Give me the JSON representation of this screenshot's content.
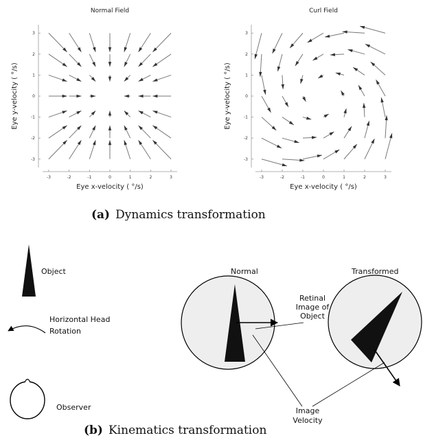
{
  "chart_data": [
    {
      "type": "quiver",
      "title": "Normal Field",
      "x_label": "Eye x-velocity ( °/s)",
      "y_label": "Eye y-velocity ( °/s)",
      "x": [
        -3,
        -2,
        -1,
        0,
        1,
        2,
        3
      ],
      "y": [
        3,
        2,
        1,
        0,
        -1,
        -2,
        -3
      ],
      "u": [
        [
          0.9,
          0.6,
          0.3,
          0,
          -0.3,
          -0.6,
          -0.9
        ],
        [
          0.9,
          0.6,
          0.3,
          0,
          -0.3,
          -0.6,
          -0.9
        ],
        [
          0.9,
          0.6,
          0.3,
          0,
          -0.3,
          -0.6,
          -0.9
        ],
        [
          0.9,
          0.6,
          0.3,
          0,
          -0.3,
          -0.6,
          -0.9
        ],
        [
          0.9,
          0.6,
          0.3,
          0,
          -0.3,
          -0.6,
          -0.9
        ],
        [
          0.9,
          0.6,
          0.3,
          0,
          -0.3,
          -0.6,
          -0.9
        ],
        [
          0.9,
          0.6,
          0.3,
          0,
          -0.3,
          -0.6,
          -0.9
        ]
      ],
      "v": [
        [
          -0.9,
          -0.9,
          -0.9,
          -0.9,
          -0.9,
          -0.9,
          -0.9
        ],
        [
          -0.6,
          -0.6,
          -0.6,
          -0.6,
          -0.6,
          -0.6,
          -0.6
        ],
        [
          -0.3,
          -0.3,
          -0.3,
          -0.3,
          -0.3,
          -0.3,
          -0.3
        ],
        [
          0,
          0,
          0,
          0,
          0,
          0,
          0
        ],
        [
          0.3,
          0.3,
          0.3,
          0.3,
          0.3,
          0.3,
          0.3
        ],
        [
          0.6,
          0.6,
          0.6,
          0.6,
          0.6,
          0.6,
          0.6
        ],
        [
          0.9,
          0.9,
          0.9,
          0.9,
          0.9,
          0.9,
          0.9
        ]
      ],
      "xlim": [
        -3.3,
        3.3
      ],
      "ylim": [
        -3.4,
        3.4
      ],
      "xticks": [
        -3,
        -2,
        -1,
        0,
        1,
        2,
        3
      ],
      "yticks": [
        -3,
        -2,
        -1,
        0,
        1,
        2,
        3
      ],
      "color": "#777777"
    },
    {
      "type": "quiver",
      "title": "Curl Field",
      "x_label": "Eye x-velocity ( °/s)",
      "y_label": "Eye y-velocity ( °/s)",
      "x": [
        -3,
        -2,
        -1,
        0,
        1,
        2,
        3
      ],
      "y": [
        3,
        2,
        1,
        0,
        -1,
        -2,
        -3
      ],
      "u": [
        [
          -0.33,
          -0.48,
          -0.63,
          -0.78,
          -0.93,
          -1.08,
          -1.23
        ],
        [
          -0.07,
          -0.22,
          -0.37,
          -0.52,
          -0.67,
          -0.82,
          -0.97
        ],
        [
          0.19,
          0.04,
          -0.11,
          -0.26,
          -0.41,
          -0.56,
          -0.71
        ],
        [
          0.45,
          0.3,
          0.15,
          0,
          -0.15,
          -0.3,
          -0.45
        ],
        [
          0.71,
          0.56,
          0.41,
          0.26,
          0.11,
          -0.04,
          -0.19
        ],
        [
          0.97,
          0.82,
          0.67,
          0.52,
          0.37,
          0.22,
          0.07
        ],
        [
          1.23,
          1.08,
          0.93,
          0.78,
          0.63,
          0.48,
          0.33
        ]
      ],
      "v": [
        [
          -1.23,
          -0.97,
          -0.71,
          -0.45,
          -0.19,
          0.07,
          0.33
        ],
        [
          -1.08,
          -0.82,
          -0.56,
          -0.3,
          -0.04,
          0.22,
          0.48
        ],
        [
          -0.93,
          -0.67,
          -0.41,
          -0.15,
          0.11,
          0.37,
          0.63
        ],
        [
          -0.78,
          -0.52,
          -0.26,
          0,
          0.26,
          0.52,
          0.78
        ],
        [
          -0.63,
          -0.37,
          -0.11,
          0.15,
          0.41,
          0.67,
          0.93
        ],
        [
          -0.48,
          -0.22,
          0.04,
          0.3,
          0.56,
          0.82,
          1.08
        ],
        [
          -0.33,
          -0.07,
          0.19,
          0.45,
          0.71,
          0.97,
          1.23
        ]
      ],
      "xlim": [
        -3.3,
        3.3
      ],
      "ylim": [
        -3.4,
        3.4
      ],
      "xticks": [
        -3,
        -2,
        -1,
        0,
        1,
        2,
        3
      ],
      "yticks": [
        -3,
        -2,
        -1,
        0,
        1,
        2,
        3
      ],
      "color": "#777777"
    }
  ],
  "captions": {
    "a_label": "(a)",
    "a_text": "Dynamics transformation",
    "b_label": "(b)",
    "b_text": "Kinematics transformation"
  },
  "diagram": {
    "object": "Object",
    "rotation_1": "Horizontal Head",
    "rotation_2": "Rotation",
    "observer": "Observer",
    "normal": "Normal",
    "transformed": "Transformed",
    "retinal_1": "Retinal",
    "retinal_2": "Image of",
    "retinal_3": "Object",
    "velocity_1": "Image",
    "velocity_2": "Velocity"
  }
}
